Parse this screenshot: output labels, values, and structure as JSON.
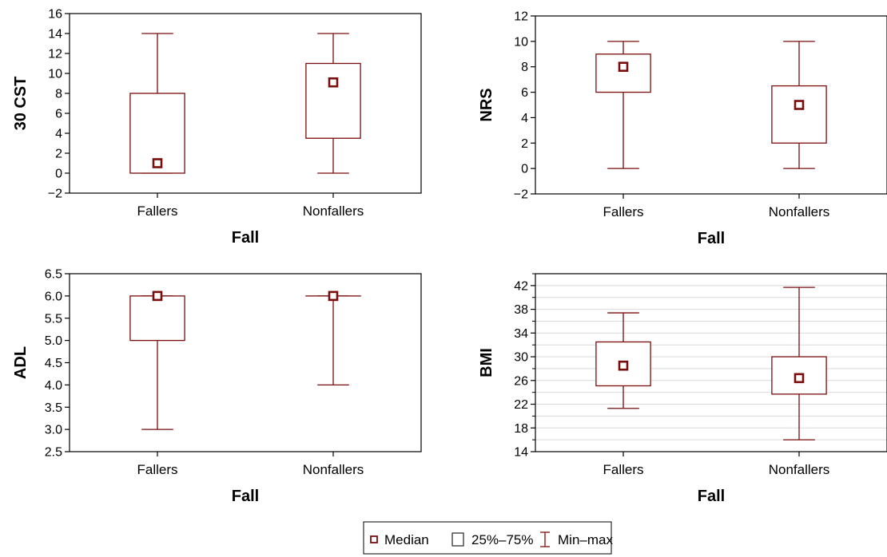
{
  "chart_data": [
    {
      "type": "boxplot",
      "ylabel": "30 CST",
      "xlabel": "Fall",
      "categories": [
        "Fallers",
        "Nonfallers"
      ],
      "ylim": [
        -2,
        16
      ],
      "yticks": [
        16,
        14,
        12,
        10,
        8,
        6,
        4,
        2,
        0,
        -2
      ],
      "ytick_labels": [
        "16",
        "14",
        "12",
        "10",
        "8",
        "6",
        "4",
        "2",
        "0",
        "−2"
      ],
      "grid": false,
      "boxes": [
        {
          "category": "Fallers",
          "min": 0,
          "q1": 0,
          "median": 1,
          "q3": 8,
          "max": 14
        },
        {
          "category": "Nonfallers",
          "min": 0,
          "q1": 3.5,
          "median": 9.1,
          "q3": 11,
          "max": 14
        }
      ]
    },
    {
      "type": "boxplot",
      "ylabel": "NRS",
      "xlabel": "Fall",
      "categories": [
        "Fallers",
        "Nonfallers"
      ],
      "ylim": [
        -2,
        12
      ],
      "yticks": [
        12,
        10,
        8,
        6,
        4,
        2,
        0,
        -2
      ],
      "ytick_labels": [
        "12",
        "10",
        "8",
        "6",
        "4",
        "2",
        "0",
        "−2"
      ],
      "grid": false,
      "boxes": [
        {
          "category": "Fallers",
          "min": 0,
          "q1": 6,
          "median": 8,
          "q3": 9,
          "max": 10
        },
        {
          "category": "Nonfallers",
          "min": 0,
          "q1": 2,
          "median": 5,
          "q3": 6.5,
          "max": 10
        }
      ]
    },
    {
      "type": "boxplot",
      "ylabel": "ADL",
      "xlabel": "Fall",
      "categories": [
        "Fallers",
        "Nonfallers"
      ],
      "ylim": [
        2.5,
        6.5
      ],
      "yticks": [
        6.5,
        6.0,
        5.5,
        5.0,
        4.5,
        4.0,
        3.5,
        3.0,
        2.5
      ],
      "ytick_labels": [
        "6.5",
        "6.0",
        "5.5",
        "5.0",
        "4.5",
        "4.0",
        "3.5",
        "3.0",
        "2.5"
      ],
      "grid": false,
      "boxes": [
        {
          "category": "Fallers",
          "min": 3,
          "q1": 5,
          "median": 6,
          "q3": 6,
          "max": 6
        },
        {
          "category": "Nonfallers",
          "min": 4,
          "q1": 6,
          "median": 6,
          "q3": 6,
          "max": 6
        }
      ]
    },
    {
      "type": "boxplot",
      "ylabel": "BMI",
      "xlabel": "Fall",
      "categories": [
        "Fallers",
        "Nonfallers"
      ],
      "ylim": [
        14,
        44
      ],
      "yticks": [
        42,
        38,
        34,
        30,
        26,
        22,
        18,
        14
      ],
      "ytick_labels": [
        "42",
        "38",
        "34",
        "30",
        "26",
        "22",
        "18",
        "14"
      ],
      "minor_yticks_step": 2,
      "grid": true,
      "boxes": [
        {
          "category": "Fallers",
          "min": 21.3,
          "q1": 25.1,
          "median": 28.5,
          "q3": 32.5,
          "max": 37.4
        },
        {
          "category": "Nonfallers",
          "min": 16,
          "q1": 23.7,
          "median": 26.4,
          "q3": 30,
          "max": 41.7
        }
      ]
    }
  ],
  "legend": {
    "items": [
      {
        "symbol": "median",
        "label": "Median"
      },
      {
        "symbol": "box",
        "label": "25%–75%"
      },
      {
        "symbol": "whisker",
        "label": "Min–max"
      }
    ]
  },
  "colors": {
    "series": "#7a0c0c",
    "axis": "#000000",
    "grid": "#d9d9d9"
  }
}
